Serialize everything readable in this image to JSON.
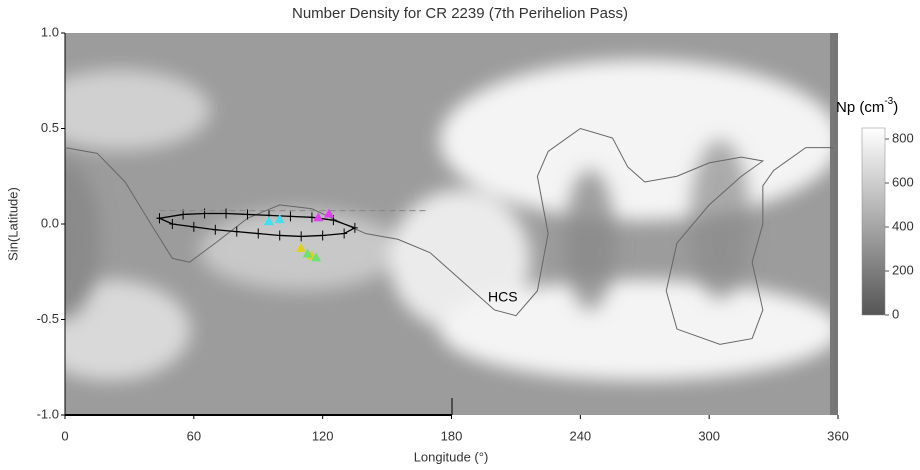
{
  "chart_data": {
    "type": "map",
    "title": "Number Density for CR 2239 (7th Perihelion Pass)",
    "x_label": "Longitude (°)",
    "y_label": "Sin(Latitude)",
    "annotation": "HCS",
    "colorbar_label": [
      "Np (cm",
      "-3",
      ")"
    ],
    "xlim": [
      0,
      360
    ],
    "xticks": [
      0,
      60,
      120,
      180,
      240,
      300,
      360
    ],
    "ylim": [
      -1,
      1
    ],
    "yticks": [
      {
        "value": -1,
        "label": "-1.0"
      },
      -0.5,
      {
        "value": 0,
        "label": "0.0"
      },
      0.5,
      {
        "value": 1,
        "label": "1.0"
      }
    ],
    "clim": [
      0,
      850
    ],
    "cticks": [
      0,
      200,
      400,
      600,
      800
    ],
    "lines": [
      {
        "color": "#666666",
        "dash": false,
        "x": [
          0,
          15,
          28,
          40,
          50,
          58,
          70,
          85,
          100,
          115,
          130,
          140,
          155,
          170,
          185,
          200,
          210,
          220,
          225,
          220,
          225,
          240,
          255,
          262,
          270,
          285,
          300,
          315,
          325,
          315,
          300,
          285,
          280,
          285,
          305,
          320,
          325,
          320,
          325,
          325,
          330,
          345,
          358
        ],
        "y": [
          0.4,
          0.37,
          0.22,
          0.0,
          -0.18,
          -0.2,
          -0.1,
          0.03,
          0.1,
          0.08,
          0.0,
          -0.05,
          -0.08,
          -0.15,
          -0.3,
          -0.45,
          -0.48,
          -0.35,
          -0.05,
          0.25,
          0.38,
          0.5,
          0.45,
          0.3,
          0.22,
          0.25,
          0.32,
          0.35,
          0.33,
          0.25,
          0.1,
          -0.1,
          -0.35,
          -0.55,
          -0.63,
          -0.6,
          -0.45,
          -0.2,
          0.0,
          0.2,
          0.28,
          0.4,
          0.4
        ]
      },
      {
        "color": "#000000",
        "dash": false,
        "x": [
          44,
          55,
          65,
          75,
          85,
          95,
          105,
          115,
          125,
          135,
          130,
          120,
          110,
          100,
          90,
          80,
          70,
          60,
          50,
          44
        ],
        "y": [
          0.03,
          0.05,
          0.055,
          0.055,
          0.05,
          0.045,
          0.04,
          0.035,
          0.02,
          -0.02,
          -0.05,
          -0.06,
          -0.065,
          -0.06,
          -0.05,
          -0.04,
          -0.03,
          -0.015,
          0.0,
          0.03
        ]
      },
      {
        "color": "#888888",
        "dash": true,
        "x": [
          44,
          168
        ],
        "y": [
          0.07,
          0.07
        ]
      }
    ],
    "points": [
      {
        "color": "#40e0f0",
        "x": [
          95,
          100
        ],
        "y": [
          0.01,
          0.02
        ]
      },
      {
        "color": "#e040f0",
        "x": [
          118,
          123
        ],
        "y": [
          0.03,
          0.05
        ]
      },
      {
        "color": "#e0d020",
        "x": [
          110,
          115
        ],
        "y": [
          -0.13,
          -0.17
        ]
      },
      {
        "color": "#70e070",
        "x": [
          113,
          117
        ],
        "y": [
          -0.16,
          -0.18
        ]
      }
    ]
  }
}
